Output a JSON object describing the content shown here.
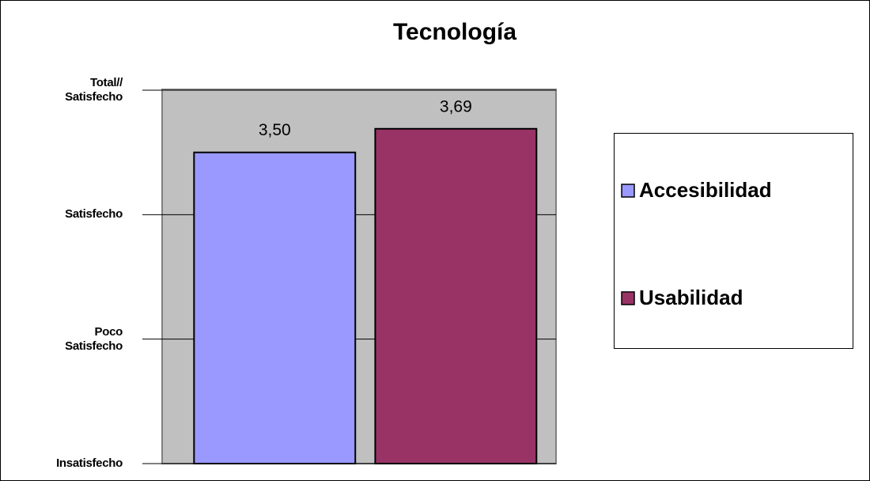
{
  "chart_data": {
    "type": "bar",
    "title": "Tecnología",
    "categories": [
      null
    ],
    "series": [
      {
        "name": "Accesibilidad",
        "color": "#9999ff",
        "values": [
          3.5
        ],
        "value_labels": [
          "3,50"
        ]
      },
      {
        "name": "Usabilidad",
        "color": "#993366",
        "values": [
          3.69
        ],
        "value_labels": [
          "3,69"
        ]
      }
    ],
    "ylim": [
      1,
      4
    ],
    "yticks": [
      {
        "value": 1,
        "label": "Insatisfecho"
      },
      {
        "value": 2,
        "label": "Poco\nSatisfecho"
      },
      {
        "value": 3,
        "label": "Satisfecho"
      },
      {
        "value": 4,
        "label": "Total//\nSatisfecho"
      }
    ],
    "grid": true,
    "legend": "right"
  }
}
